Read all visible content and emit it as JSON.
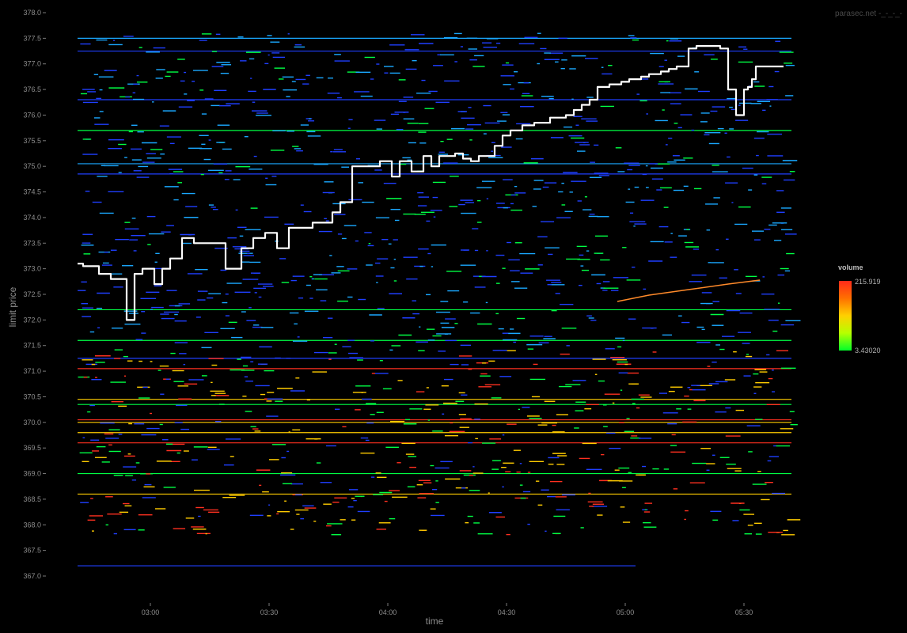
{
  "watermark": "parasec.net -_-_-_-",
  "chart_data": {
    "type": "heatmap",
    "title": "",
    "xlabel": "time",
    "ylabel": "limit price",
    "x_ticks": [
      "03:00",
      "03:30",
      "04:00",
      "04:30",
      "05:00",
      "05:30"
    ],
    "x_tick_minutes": [
      180,
      210,
      240,
      270,
      300,
      330
    ],
    "xlim_minutes": [
      160,
      340
    ],
    "y_ticks": [
      367.0,
      367.5,
      368.0,
      368.5,
      369.0,
      369.5,
      370.0,
      370.5,
      371.0,
      371.5,
      372.0,
      372.5,
      373.0,
      373.5,
      374.0,
      374.5,
      375.0,
      375.5,
      376.0,
      376.5,
      377.0,
      377.5,
      378.0
    ],
    "y_tick_labels": [
      "367.0",
      "367.5",
      "368.0",
      "368.5",
      "369.0",
      "369.5",
      "370.0",
      "370.5",
      "371.0",
      "371.5",
      "372.0",
      "372.5",
      "373.0",
      "373.5",
      "374.0",
      "374.5",
      "375.0",
      "375.5",
      "376.0",
      "376.5",
      "377.0",
      "377.5",
      "378.0"
    ],
    "ylim": [
      366.6,
      378.0
    ],
    "grid": false,
    "legend": {
      "title": "volume",
      "max_label": "215.919",
      "min_label": "3.43020",
      "placement": "right",
      "colors": [
        "#00ff2a",
        "#b6ff00",
        "#ffd000",
        "#ff7000",
        "#ff2a1a"
      ]
    },
    "colors": {
      "background": "#000000",
      "price_line": "#ffffff",
      "low_volume": "#1f3fff",
      "mid_low_volume": "#1aa8ff",
      "mid_volume": "#00ff44",
      "high_volume": "#ffcc00",
      "max_volume": "#ff3020"
    },
    "price_series": {
      "name": "",
      "x_minutes": [
        160,
        163,
        167,
        170,
        174,
        176,
        178,
        181,
        183,
        185,
        188,
        191,
        195,
        196,
        199,
        203,
        206,
        209,
        212,
        215,
        218,
        221,
        226,
        228,
        231,
        233,
        236,
        238,
        240,
        241,
        243,
        246,
        249,
        251,
        253,
        257,
        259,
        261,
        263,
        267,
        269,
        271,
        274,
        277,
        281,
        285,
        287,
        289,
        291,
        293,
        296,
        299,
        301,
        304,
        306,
        309,
        311,
        313,
        316,
        318,
        321,
        324,
        326,
        328,
        330,
        331,
        332,
        333,
        334,
        335,
        336,
        337,
        338,
        339,
        340
      ],
      "y": [
        373.1,
        373.05,
        372.9,
        372.8,
        372.0,
        372.9,
        373.0,
        372.7,
        373.0,
        373.2,
        373.6,
        373.5,
        373.5,
        373.5,
        373.0,
        373.4,
        373.6,
        373.7,
        373.4,
        373.8,
        373.8,
        373.9,
        374.1,
        374.3,
        375.0,
        375.0,
        375.0,
        375.1,
        375.1,
        374.8,
        375.1,
        374.9,
        375.2,
        375.0,
        375.2,
        375.25,
        375.15,
        375.1,
        375.2,
        375.4,
        375.6,
        375.7,
        375.8,
        375.85,
        375.95,
        376.0,
        376.1,
        376.2,
        376.3,
        376.55,
        376.6,
        376.65,
        376.7,
        376.75,
        376.8,
        376.85,
        376.9,
        376.95,
        377.3,
        377.35,
        377.35,
        377.3,
        376.5,
        376.0,
        376.5,
        376.55,
        376.7,
        376.95,
        376.95,
        376.95,
        376.95,
        376.95,
        376.95,
        376.95,
        376.95
      ]
    }
  }
}
